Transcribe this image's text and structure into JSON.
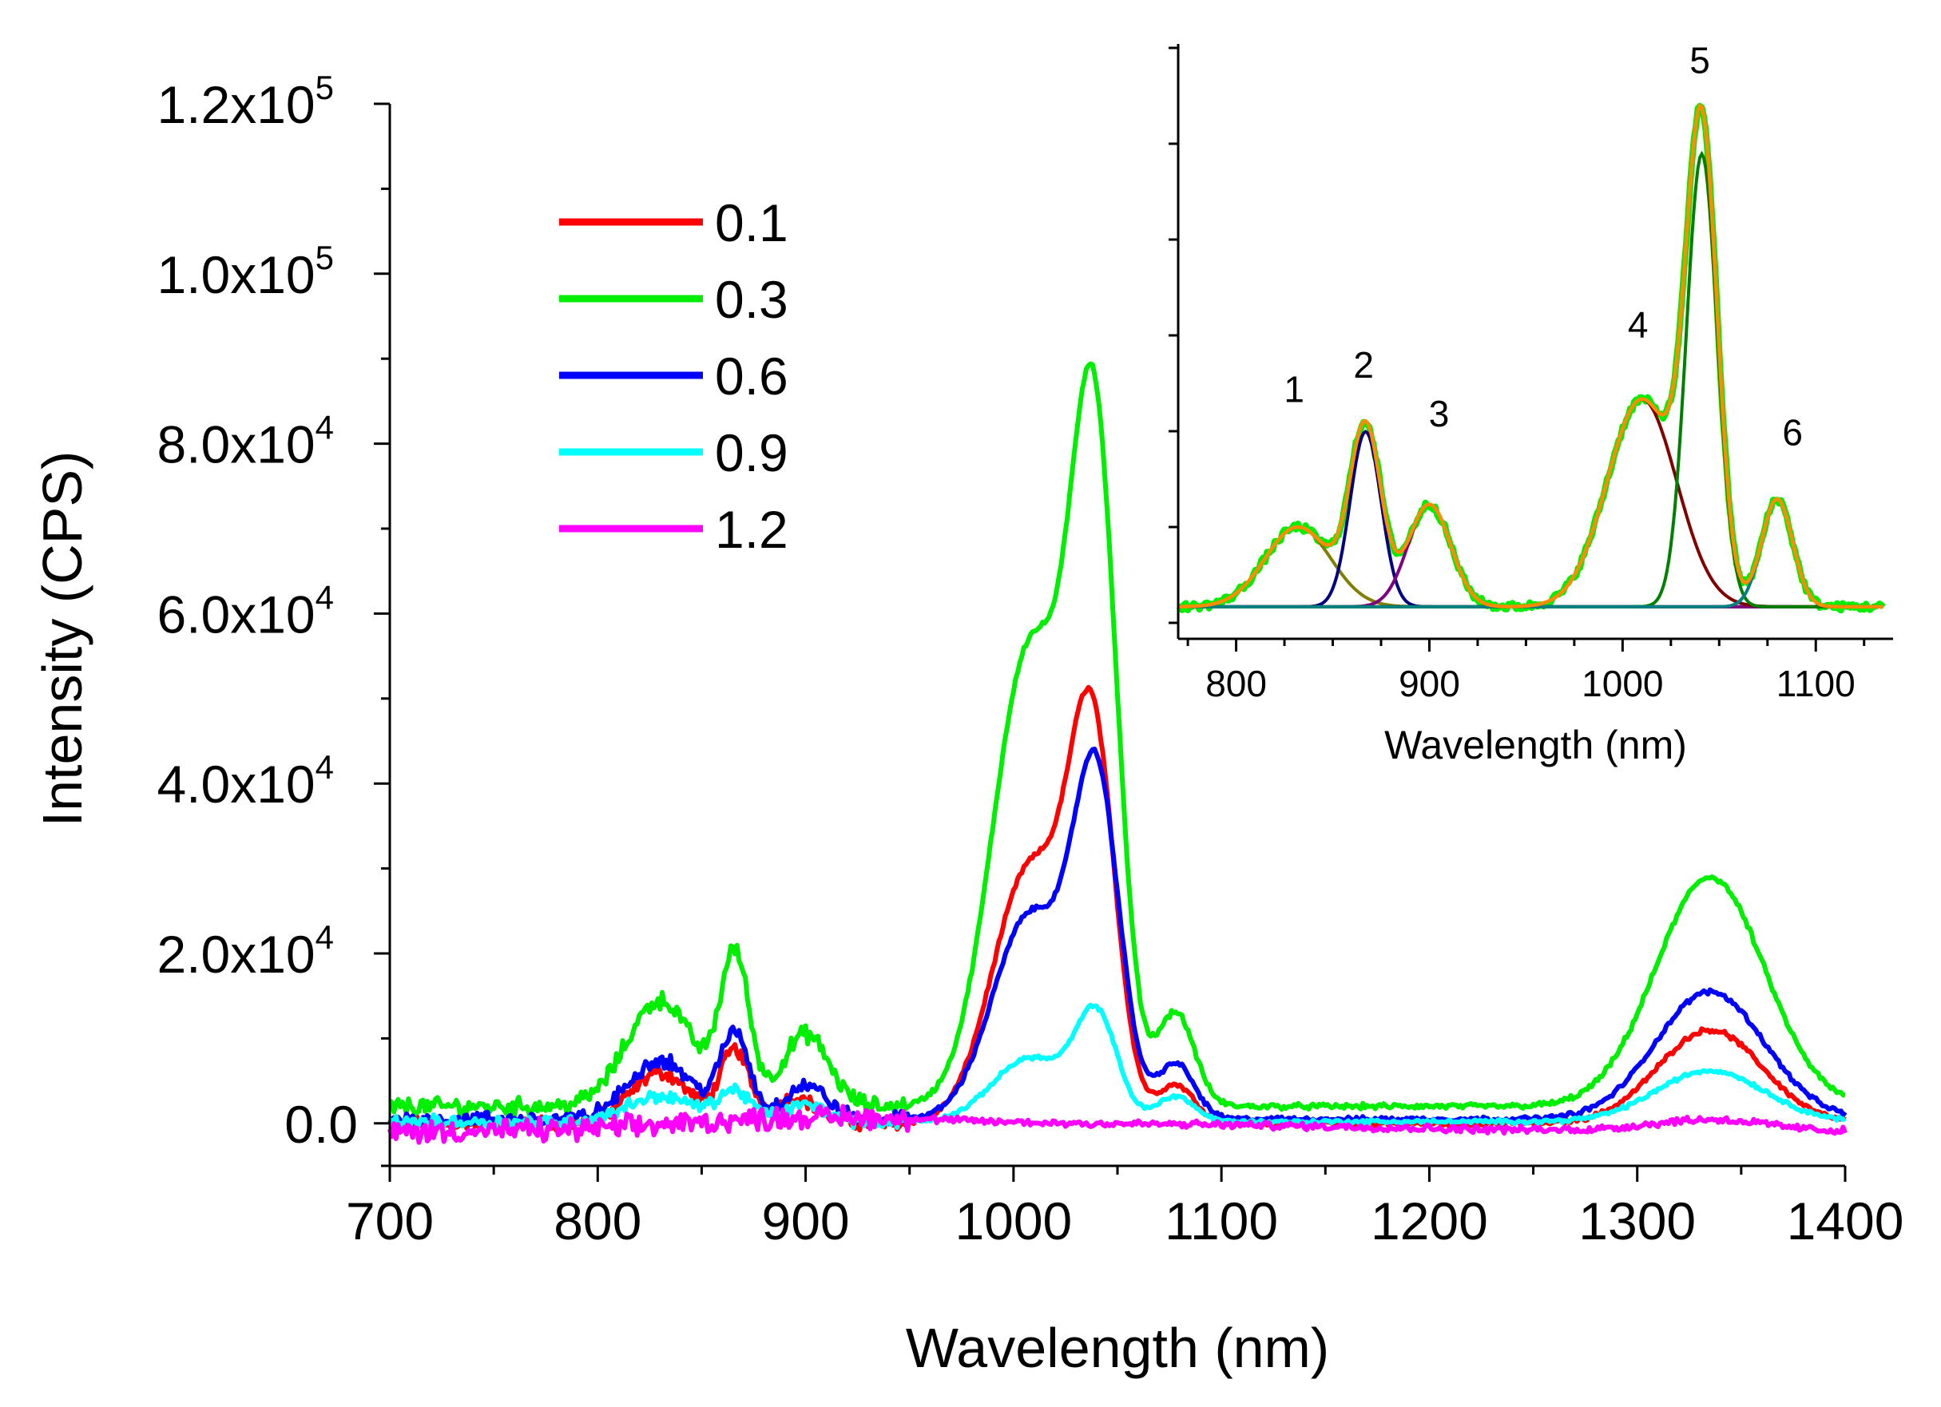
{
  "chart_data": [
    {
      "type": "line",
      "id": "main",
      "title": "",
      "xlabel": "Wavelength (nm)",
      "ylabel": "Intensity (CPS)",
      "xlim": [
        700,
        1400
      ],
      "ylim": [
        -5000,
        120000
      ],
      "xticks": [
        700,
        800,
        900,
        1000,
        1100,
        1200,
        1300,
        1400
      ],
      "yticks": [
        {
          "value": 0,
          "mant": "0.0",
          "exp": ""
        },
        {
          "value": 20000,
          "mant": "2.0x10",
          "exp": "4"
        },
        {
          "value": 40000,
          "mant": "4.0x10",
          "exp": "4"
        },
        {
          "value": 60000,
          "mant": "6.0x10",
          "exp": "4"
        },
        {
          "value": 80000,
          "mant": "8.0x10",
          "exp": "4"
        },
        {
          "value": 100000,
          "mant": "1.0x10",
          "exp": "5"
        },
        {
          "value": 120000,
          "mant": "1.2x10",
          "exp": "5"
        }
      ],
      "legend_position": "top-left",
      "series": [
        {
          "name": "0.1",
          "color": "#ff0000",
          "noise": 600,
          "baseline": 0,
          "peaks": [
            [
              830,
              6000,
              14
            ],
            [
              866,
              8500,
              7
            ],
            [
              895,
              3000,
              10
            ],
            [
              1008,
              30000,
              18
            ],
            [
              1038,
              43000,
              11
            ],
            [
              1078,
              4500,
              9
            ],
            [
              1335,
              11000,
              25
            ]
          ]
        },
        {
          "name": "0.3",
          "color": "#00ee00",
          "noise": 700,
          "baseline": 2000,
          "peaks": [
            [
              830,
              12500,
              16
            ],
            [
              866,
              17500,
              7
            ],
            [
              900,
              8500,
              11
            ],
            [
              1008,
              54000,
              18
            ],
            [
              1039,
              74000,
              11
            ],
            [
              1078,
              11000,
              9
            ],
            [
              1335,
              27000,
              26
            ]
          ]
        },
        {
          "name": "0.6",
          "color": "#0000ff",
          "noise": 600,
          "baseline": 500,
          "peaks": [
            [
              830,
              7000,
              15
            ],
            [
              866,
              10000,
              7
            ],
            [
              900,
              4000,
              10
            ],
            [
              1008,
              24000,
              18
            ],
            [
              1040,
              38000,
              11
            ],
            [
              1078,
              6500,
              9
            ],
            [
              1335,
              15000,
              26
            ]
          ]
        },
        {
          "name": "0.9",
          "color": "#00ffff",
          "noise": 500,
          "baseline": 200,
          "peaks": [
            [
              830,
              3000,
              16
            ],
            [
              866,
              3500,
              8
            ],
            [
              900,
              2000,
              10
            ],
            [
              1008,
              7500,
              18
            ],
            [
              1040,
              12000,
              10
            ],
            [
              1078,
              3000,
              9
            ],
            [
              1335,
              6000,
              26
            ]
          ]
        },
        {
          "name": "1.2",
          "color": "#ff00ff",
          "noise": 900,
          "baseline": -1000,
          "peaks": [
            [
              900,
              1300,
              60
            ],
            [
              1050,
              900,
              120
            ],
            [
              1335,
              1400,
              28
            ]
          ]
        }
      ]
    },
    {
      "type": "line",
      "id": "inset",
      "title": "",
      "xlabel": "Wavelength (nm)",
      "ylabel": "",
      "xlim": [
        770,
        1140
      ],
      "ylim": [
        0,
        1.0
      ],
      "xticks": [
        800,
        900,
        1000,
        1100
      ],
      "peak_labels": [
        {
          "text": "1",
          "x": 830,
          "y": 0.395
        },
        {
          "text": "2",
          "x": 866,
          "y": 0.44
        },
        {
          "text": "3",
          "x": 905,
          "y": 0.35
        },
        {
          "text": "4",
          "x": 1008,
          "y": 0.515
        },
        {
          "text": "5",
          "x": 1040,
          "y": 1.005
        },
        {
          "text": "6",
          "x": 1088,
          "y": 0.315
        }
      ],
      "components": [
        {
          "label": "1",
          "center": 832,
          "height": 0.148,
          "width": 17,
          "color": "#808000"
        },
        {
          "label": "2",
          "center": 867,
          "height": 0.325,
          "width": 8,
          "color": "#000080"
        },
        {
          "label": "3",
          "center": 900,
          "height": 0.19,
          "width": 11,
          "color": "#800080"
        },
        {
          "label": "4",
          "center": 1010,
          "height": 0.385,
          "width": 18,
          "color": "#800000"
        },
        {
          "label": "5",
          "center": 1041,
          "height": 0.84,
          "width": 8,
          "color": "#008000"
        },
        {
          "label": "6",
          "center": 1080,
          "height": 0.2,
          "width": 8,
          "color": "#008080"
        }
      ],
      "measured_color": "#00ee00",
      "fit_color": "#ff8c00",
      "baseline": 0.015
    }
  ]
}
